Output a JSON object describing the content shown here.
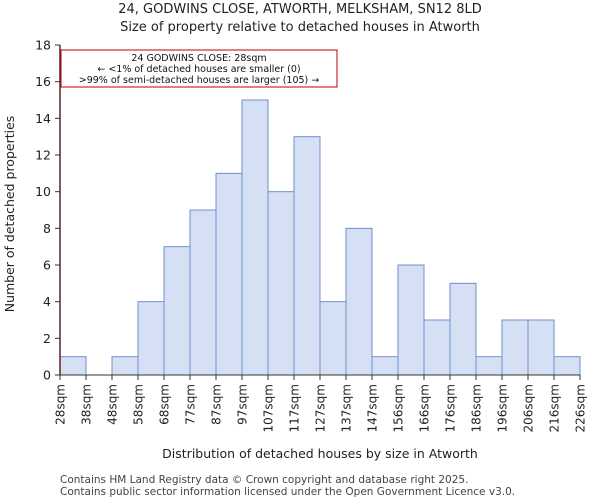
{
  "chart_data": {
    "type": "bar",
    "title": "24, GODWINS CLOSE, ATWORTH, MELKSHAM, SN12 8LD",
    "subtitle": "Size of property relative to detached houses in Atworth",
    "xlabel": "Distribution of detached houses by size in Atworth",
    "ylabel": "Number of detached properties",
    "ylim": [
      0,
      18
    ],
    "yticks": [
      0,
      2,
      4,
      6,
      8,
      10,
      12,
      14,
      16,
      18
    ],
    "xtick_labels": [
      "28sqm",
      "38sqm",
      "48sqm",
      "58sqm",
      "68sqm",
      "77sqm",
      "87sqm",
      "97sqm",
      "107sqm",
      "117sqm",
      "127sqm",
      "137sqm",
      "147sqm",
      "156sqm",
      "166sqm",
      "176sqm",
      "186sqm",
      "196sqm",
      "206sqm",
      "216sqm",
      "226sqm"
    ],
    "values": [
      1,
      0,
      1,
      4,
      7,
      9,
      11,
      15,
      10,
      13,
      4,
      8,
      1,
      6,
      3,
      5,
      1,
      3,
      3,
      1
    ],
    "bar_color": "#d6e0f4",
    "bar_edge_color": "#6f8fd0",
    "marker": {
      "bin_index": 0,
      "color": "#bb0000"
    },
    "annotation": {
      "line1": "24 GODWINS CLOSE: 28sqm",
      "line2": "← <1% of detached houses are smaller (0)",
      "line3": ">99% of semi-detached houses are larger (105) →",
      "border_color": "#bb0000"
    }
  },
  "footer": {
    "line1": "Contains HM Land Registry data © Crown copyright and database right 2025.",
    "line2": "Contains public sector information licensed under the Open Government Licence v3.0."
  }
}
